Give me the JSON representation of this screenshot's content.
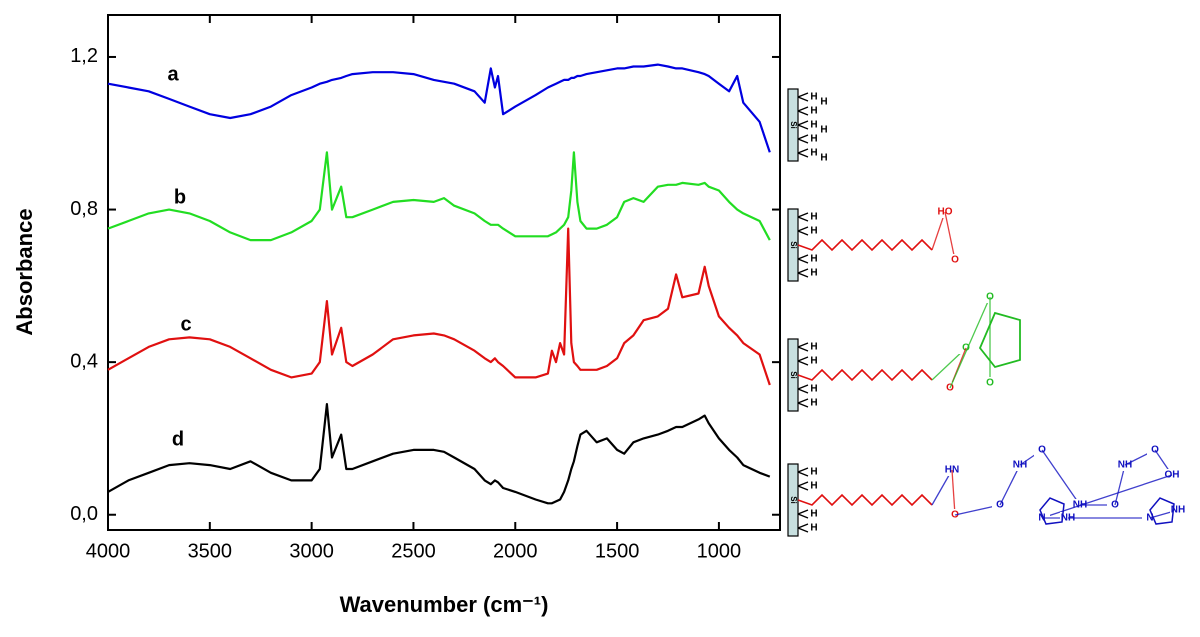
{
  "chart_data": {
    "type": "line",
    "xlabel": "Wavenumber (cm⁻¹)",
    "ylabel": "Absorbance",
    "xlim": [
      4000,
      700
    ],
    "ylim": [
      -0.04,
      1.31
    ],
    "xticks": [
      4000,
      3500,
      3000,
      2500,
      2000,
      1500,
      1000
    ],
    "yticks": [
      {
        "value": 0,
        "label": "0,0"
      },
      {
        "value": 0.4,
        "label": "0,4"
      },
      {
        "value": 0.8,
        "label": "0,8"
      },
      {
        "value": 1.2,
        "label": "1,2"
      }
    ],
    "x": [
      4000,
      3900,
      3800,
      3700,
      3600,
      3500,
      3400,
      3300,
      3200,
      3100,
      3000,
      2960,
      2925,
      2900,
      2855,
      2830,
      2800,
      2700,
      2600,
      2500,
      2400,
      2350,
      2300,
      2200,
      2150,
      2120,
      2100,
      2085,
      2060,
      2000,
      1900,
      1840,
      1820,
      1800,
      1780,
      1760,
      1740,
      1725,
      1712,
      1695,
      1680,
      1650,
      1600,
      1550,
      1500,
      1465,
      1420,
      1370,
      1300,
      1250,
      1210,
      1180,
      1100,
      1070,
      1050,
      1000,
      950,
      910,
      880,
      800,
      750
    ],
    "series": [
      {
        "name": "a",
        "color": "#0000e0",
        "values": [
          1.13,
          1.12,
          1.11,
          1.09,
          1.07,
          1.05,
          1.04,
          1.05,
          1.07,
          1.1,
          1.12,
          1.13,
          1.135,
          1.14,
          1.145,
          1.15,
          1.155,
          1.16,
          1.16,
          1.155,
          1.14,
          1.135,
          1.13,
          1.11,
          1.08,
          1.17,
          1.12,
          1.15,
          1.05,
          1.07,
          1.1,
          1.12,
          1.125,
          1.13,
          1.135,
          1.14,
          1.14,
          1.145,
          1.145,
          1.15,
          1.15,
          1.155,
          1.16,
          1.165,
          1.17,
          1.17,
          1.175,
          1.175,
          1.18,
          1.175,
          1.17,
          1.17,
          1.16,
          1.155,
          1.15,
          1.13,
          1.11,
          1.15,
          1.08,
          1.03,
          0.95
        ]
      },
      {
        "name": "b",
        "color": "#22dd22",
        "values": [
          0.75,
          0.77,
          0.79,
          0.8,
          0.79,
          0.77,
          0.74,
          0.72,
          0.72,
          0.74,
          0.77,
          0.8,
          0.95,
          0.8,
          0.86,
          0.78,
          0.78,
          0.8,
          0.82,
          0.825,
          0.82,
          0.83,
          0.81,
          0.79,
          0.77,
          0.76,
          0.76,
          0.76,
          0.75,
          0.73,
          0.73,
          0.73,
          0.735,
          0.74,
          0.75,
          0.76,
          0.78,
          0.85,
          0.95,
          0.82,
          0.77,
          0.75,
          0.75,
          0.76,
          0.78,
          0.82,
          0.83,
          0.82,
          0.86,
          0.865,
          0.865,
          0.87,
          0.865,
          0.87,
          0.86,
          0.85,
          0.82,
          0.8,
          0.79,
          0.77,
          0.72
        ]
      },
      {
        "name": "c",
        "color": "#e01010",
        "values": [
          0.38,
          0.41,
          0.44,
          0.46,
          0.465,
          0.46,
          0.44,
          0.41,
          0.38,
          0.36,
          0.37,
          0.4,
          0.56,
          0.42,
          0.49,
          0.4,
          0.39,
          0.42,
          0.46,
          0.47,
          0.475,
          0.47,
          0.46,
          0.43,
          0.41,
          0.4,
          0.41,
          0.4,
          0.39,
          0.36,
          0.36,
          0.37,
          0.43,
          0.4,
          0.45,
          0.42,
          0.75,
          0.45,
          0.4,
          0.39,
          0.38,
          0.38,
          0.38,
          0.39,
          0.41,
          0.45,
          0.47,
          0.51,
          0.52,
          0.54,
          0.63,
          0.57,
          0.58,
          0.65,
          0.6,
          0.52,
          0.49,
          0.47,
          0.45,
          0.42,
          0.34
        ]
      },
      {
        "name": "d",
        "color": "#000000",
        "values": [
          0.06,
          0.09,
          0.11,
          0.13,
          0.135,
          0.13,
          0.12,
          0.14,
          0.11,
          0.09,
          0.09,
          0.12,
          0.29,
          0.15,
          0.21,
          0.12,
          0.12,
          0.14,
          0.16,
          0.17,
          0.17,
          0.165,
          0.15,
          0.12,
          0.09,
          0.08,
          0.09,
          0.085,
          0.07,
          0.06,
          0.04,
          0.03,
          0.03,
          0.035,
          0.04,
          0.06,
          0.09,
          0.12,
          0.14,
          0.18,
          0.21,
          0.22,
          0.19,
          0.2,
          0.17,
          0.16,
          0.19,
          0.2,
          0.21,
          0.22,
          0.23,
          0.23,
          0.25,
          0.26,
          0.24,
          0.2,
          0.17,
          0.15,
          0.13,
          0.11,
          0.1
        ]
      }
    ]
  },
  "structures": [
    {
      "substrate": "Si",
      "hydrogen": "H",
      "groups": []
    },
    {
      "substrate": "Si",
      "hydrogen": "H",
      "groups": [
        "HO",
        "O"
      ]
    },
    {
      "substrate": "Si",
      "hydrogen": "H",
      "groups": [
        "O",
        "O",
        "O",
        "O"
      ]
    },
    {
      "substrate": "Si",
      "hydrogen": "H",
      "groups": [
        "HN",
        "O",
        "O",
        "NH",
        "O",
        "NH",
        "O",
        "NH",
        "O",
        "OH",
        "N",
        "NH",
        "N",
        "NH"
      ]
    }
  ]
}
